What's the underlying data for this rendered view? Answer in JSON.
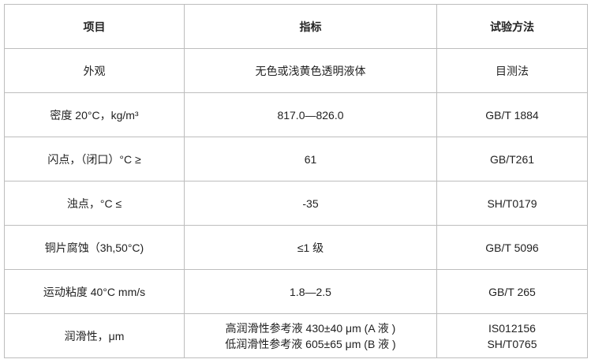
{
  "table": {
    "header": [
      "项目",
      "指标",
      "试验方法"
    ],
    "rows": [
      [
        "外观",
        "无色或浅黄色透明液体",
        "目测法"
      ],
      [
        "密度 20°C，kg/m³",
        "817.0—826.0",
        "GB/T 1884"
      ],
      [
        "闪点，（闭口）°C  ≥",
        "61",
        "GB/T261"
      ],
      [
        "浊点，°C  ≤",
        "-35",
        "SH/T0179"
      ],
      [
        "铜片腐蚀（3h,50°C)",
        "≤1 级",
        "GB/T 5096"
      ],
      [
        "运动粘度 40°C mm/s",
        "1.8—2.5",
        "GB/T 265"
      ],
      [
        "润滑性，μm",
        [
          "高润滑性参考液 430±40 μm (A 液 )",
          "低润滑性参考液 605±65 μm (B 液 )"
        ],
        [
          "IS012156",
          "SH/T0765"
        ]
      ]
    ]
  }
}
